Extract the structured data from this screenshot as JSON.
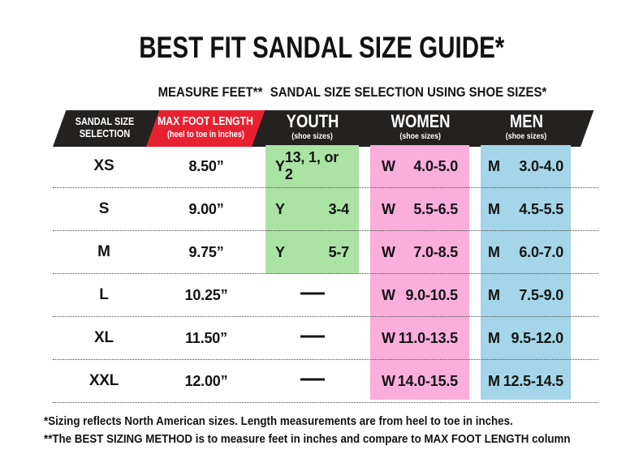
{
  "title": "BEST FIT SANDAL SIZE GUIDE*",
  "subtitles": {
    "measure": "MEASURE FEET**",
    "selection": "SANDAL SIZE SELECTION USING SHOE SIZES*"
  },
  "header": {
    "size_col": {
      "line1": "SANDAL SIZE",
      "line2": "SELECTION"
    },
    "length_col": {
      "title": "MAX FOOT LENGTH",
      "subtitle": "(heel to toe in inches)"
    },
    "youth_col": {
      "title": "YOUTH",
      "subtitle": "(shoe sizes)"
    },
    "women_col": {
      "title": "WOMEN",
      "subtitle": "(shoe sizes)"
    },
    "men_col": {
      "title": "MEN",
      "subtitle": "(shoe sizes)"
    }
  },
  "rows": [
    {
      "size": "XS",
      "max_length": "8.50”",
      "youth": {
        "prefix": "Y",
        "value": "13, 1, or 2"
      },
      "women": {
        "prefix": "W",
        "value": "4.0-5.0"
      },
      "men": {
        "prefix": "M",
        "value": "3.0-4.0"
      }
    },
    {
      "size": "S",
      "max_length": "9.00”",
      "youth": {
        "prefix": "Y",
        "value": "3-4"
      },
      "women": {
        "prefix": "W",
        "value": "5.5-6.5"
      },
      "men": {
        "prefix": "M",
        "value": "4.5-5.5"
      }
    },
    {
      "size": "M",
      "max_length": "9.75”",
      "youth": {
        "prefix": "Y",
        "value": "5-7"
      },
      "women": {
        "prefix": "W",
        "value": "7.0-8.5"
      },
      "men": {
        "prefix": "M",
        "value": "6.0-7.0"
      }
    },
    {
      "size": "L",
      "max_length": "10.25”",
      "youth": {
        "prefix": "",
        "value": "—"
      },
      "women": {
        "prefix": "W",
        "value": "9.0-10.5"
      },
      "men": {
        "prefix": "M",
        "value": "7.5-9.0"
      }
    },
    {
      "size": "XL",
      "max_length": "11.50”",
      "youth": {
        "prefix": "",
        "value": "—"
      },
      "women": {
        "prefix": "W",
        "value": "11.0-13.5"
      },
      "men": {
        "prefix": "M",
        "value": "9.5-12.0"
      }
    },
    {
      "size": "XXL",
      "max_length": "12.00”",
      "youth": {
        "prefix": "",
        "value": "—"
      },
      "women": {
        "prefix": "W",
        "value": "14.0-15.5"
      },
      "men": {
        "prefix": "M",
        "value": "12.5-14.5"
      }
    }
  ],
  "footnotes": [
    "*Sizing reflects North American sizes. Length measurements are from heel to toe in inches.",
    "**The BEST SIZING METHOD is to measure feet in inches and compare to MAX FOOT LENGTH column"
  ],
  "colors": {
    "header_bar": "#242220",
    "max_length_red": "#e82130",
    "youth_green": "#abe3a4",
    "women_pink": "#f9aedb",
    "men_blue": "#a4d5e8"
  },
  "chart_data": {
    "type": "table",
    "title": "BEST FIT SANDAL SIZE GUIDE*",
    "columns": [
      "SANDAL SIZE SELECTION",
      "MAX FOOT LENGTH (heel to toe in inches)",
      "YOUTH (shoe sizes)",
      "WOMEN (shoe sizes)",
      "MEN (shoe sizes)"
    ],
    "rows": [
      [
        "XS",
        "8.50”",
        "Y 13, 1, or 2",
        "W 4.0-5.0",
        "M 3.0-4.0"
      ],
      [
        "S",
        "9.00”",
        "Y 3-4",
        "W 5.5-6.5",
        "M 4.5-5.5"
      ],
      [
        "M",
        "9.75”",
        "Y 5-7",
        "W 7.0-8.5",
        "M 6.0-7.0"
      ],
      [
        "L",
        "10.25”",
        "—",
        "W 9.0-10.5",
        "M 7.5-9.0"
      ],
      [
        "XL",
        "11.50”",
        "—",
        "W 11.0-13.5",
        "M 9.5-12.0"
      ],
      [
        "XXL",
        "12.00”",
        "—",
        "W 14.0-15.5",
        "M 12.5-14.5"
      ]
    ]
  }
}
